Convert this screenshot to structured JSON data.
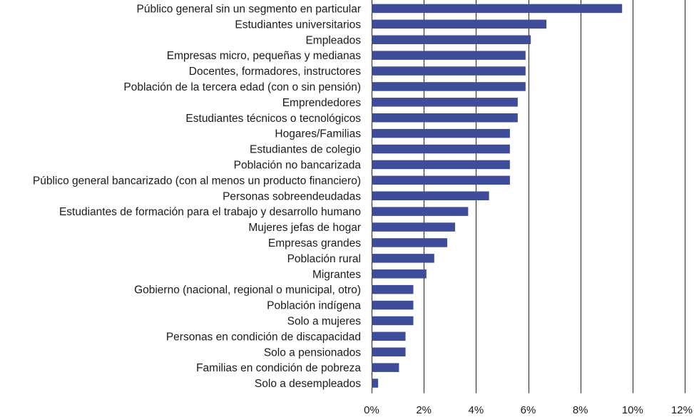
{
  "chart_data": {
    "type": "bar",
    "orientation": "horizontal",
    "title": "",
    "xlabel": "",
    "ylabel": "",
    "xlim": [
      0,
      12
    ],
    "x_ticks": [
      0,
      2,
      4,
      6,
      8,
      10,
      12
    ],
    "x_tick_labels": [
      "0%",
      "2%",
      "4%",
      "6%",
      "8%",
      "10%",
      "12%"
    ],
    "grid": "vertical",
    "legend": "none",
    "bar_color": "#3f4c9a",
    "categories": [
      "Público general sin un segmento en particular",
      "Estudiantes universitarios",
      "Empleados",
      "Empresas micro, pequeñas y medianas",
      "Docentes, formadores, instructores",
      "Población de la tercera edad (con o sin pensión)",
      "Emprendedores",
      "Estudiantes técnicos o tecnológicos",
      "Hogares/Familias",
      "Estudiantes de colegio",
      "Población no bancarizada",
      "Público general bancarizado (con al menos un producto financiero)",
      "Personas sobreendeudadas",
      "Estudiantes de formación para el trabajo y desarrollo humano",
      "Mujeres jefas de hogar",
      "Empresas grandes",
      "Población rural",
      "Migrantes",
      "Gobierno (nacional, regional o municipal, otro)",
      "Población indígena",
      "Solo a mujeres",
      "Personas en condición de discapacidad",
      "Solo a pensionados",
      "Familias en condición de pobreza",
      "Solo a desempleados"
    ],
    "values": [
      9.6,
      6.7,
      6.1,
      5.9,
      5.9,
      5.9,
      5.6,
      5.6,
      5.3,
      5.3,
      5.3,
      5.3,
      4.5,
      3.7,
      3.2,
      2.9,
      2.4,
      2.1,
      1.6,
      1.6,
      1.6,
      1.3,
      1.3,
      1.05,
      0.25
    ]
  }
}
